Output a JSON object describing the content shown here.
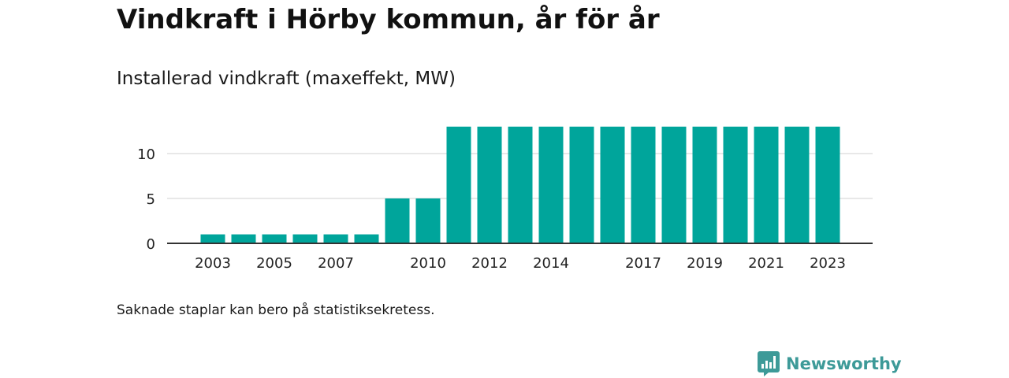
{
  "title": "Vindkraft i Hörby kommun, år för år",
  "subtitle": "Installerad vindkraft (maxeffekt, MW)",
  "footnote": "Saknade staplar kan bero på statistiksekretess.",
  "brand": {
    "name": "Newsworthy",
    "icon": "newsworthy-logo-icon",
    "color": "#3d9a98"
  },
  "colors": {
    "bar": "#00a59b",
    "grid": "#d9d9d9",
    "axis": "#333333"
  },
  "chart_data": {
    "type": "bar",
    "x": [
      2003,
      2004,
      2005,
      2006,
      2007,
      2008,
      2009,
      2010,
      2011,
      2012,
      2013,
      2014,
      2015,
      2016,
      2017,
      2018,
      2019,
      2020,
      2021,
      2022,
      2023
    ],
    "values": [
      1,
      1,
      1,
      1,
      1,
      1,
      5,
      5,
      13,
      13,
      13,
      13,
      13,
      13,
      13,
      13,
      13,
      13,
      13,
      13,
      13
    ],
    "x_tick_labels": [
      "2003",
      "2005",
      "2007",
      "2010",
      "2012",
      "2014",
      "2017",
      "2019",
      "2021",
      "2023"
    ],
    "y_ticks": [
      0,
      5,
      10
    ],
    "ylim": [
      0,
      13
    ],
    "grid": true,
    "legend": "none"
  }
}
